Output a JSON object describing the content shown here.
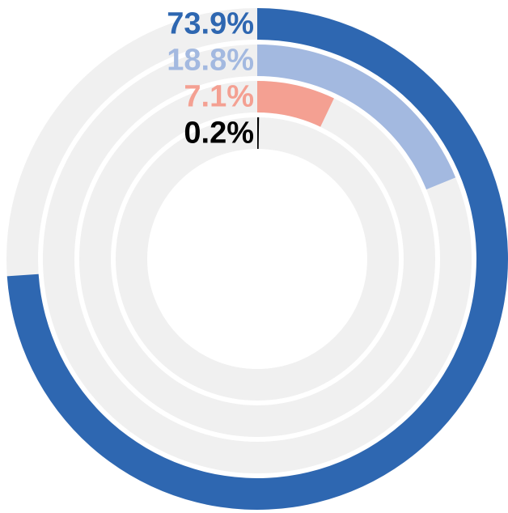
{
  "chart_data": {
    "type": "radial_bar",
    "series": [
      {
        "name": null,
        "color": "#2e67b1",
        "values": [
          73.9
        ],
        "value_labels": [
          "73.9%"
        ]
      },
      {
        "name": null,
        "color": "#a3b9e0",
        "values": [
          18.8
        ],
        "value_labels": [
          "18.8%"
        ]
      },
      {
        "name": null,
        "color": "#f4a092",
        "values": [
          7.1
        ],
        "value_labels": [
          "7.1%"
        ]
      },
      {
        "name": null,
        "color": "#000000",
        "values": [
          0.2
        ],
        "value_labels": [
          "0.2%"
        ]
      }
    ],
    "ylim": [
      0,
      100
    ],
    "track_color": "#f0f0f0"
  }
}
